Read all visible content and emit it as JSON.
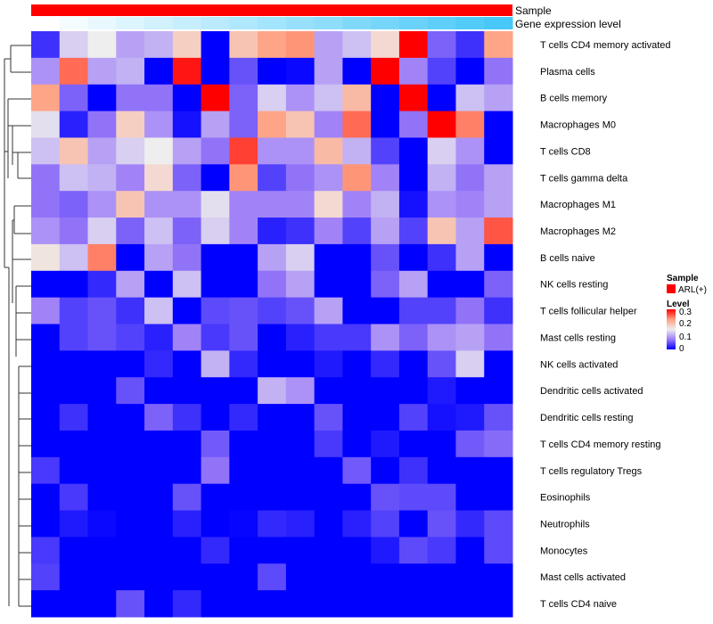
{
  "chart_data": {
    "type": "heatmap",
    "title": "",
    "color_scale": {
      "min": 0,
      "max": 0.3,
      "low": "#0000ff",
      "mid": "#eeeeee",
      "high": "#ff0000"
    },
    "annotations": {
      "sample_label": "Sample",
      "gene_label": "Gene expression level",
      "sample_color": "#ff0000",
      "gene_colors": [
        "#ffffff",
        "#48c8f8"
      ]
    },
    "legend": {
      "sample_title": "Sample",
      "sample_entry": "ARL(+)",
      "level_title": "Level",
      "ticks": [
        "0.3",
        "0.2",
        "0.1",
        "0"
      ],
      "placement": "right"
    },
    "rows": [
      "T cells CD4 memory activated",
      "Plasma cells",
      "B cells memory",
      "Macrophages M0",
      "T cells CD8",
      "T cells gamma delta",
      "Macrophages M1",
      "Macrophages M2",
      "B cells naive",
      "NK cells resting",
      "T cells follicular helper",
      "Mast cells resting",
      "NK cells activated",
      "Dendritic cells activated",
      "Dendritic cells resting",
      "T cells CD4 memory resting",
      "T cells regulatory  Tregs",
      "Eosinophils",
      "Neutrophils",
      "Monocytes",
      "Mast cells activated",
      "T cells CD4 naive"
    ],
    "values": [
      [
        0.03,
        0.13,
        0.15,
        0.1,
        0.11,
        0.18,
        0,
        0.19,
        0.22,
        0.23,
        0.1,
        0.12,
        0.17,
        0.3,
        0.06,
        0.03,
        0.22
      ],
      [
        0.09,
        0.25,
        0.1,
        0.11,
        0,
        0.29,
        0,
        0.05,
        0,
        0.005,
        0.1,
        0,
        0.3,
        0.08,
        0.04,
        0,
        0.07
      ],
      [
        0.22,
        0.06,
        0,
        0.07,
        0.07,
        0,
        0.3,
        0.06,
        0.13,
        0.09,
        0.12,
        0.2,
        0,
        0.3,
        0,
        0.12,
        0.1
      ],
      [
        0.14,
        0.02,
        0.07,
        0.18,
        0.09,
        0.01,
        0.1,
        0.06,
        0.22,
        0.19,
        0.08,
        0.25,
        0,
        0.07,
        0.3,
        0.24,
        0
      ],
      [
        0.12,
        0.19,
        0.1,
        0.13,
        0.15,
        0.1,
        0.07,
        0.27,
        0.09,
        0.09,
        0.2,
        0.11,
        0.04,
        0,
        0.13,
        0.09,
        0
      ],
      [
        0.07,
        0.12,
        0.11,
        0.08,
        0.17,
        0.06,
        0,
        0.23,
        0.04,
        0.07,
        0.09,
        0.23,
        0.08,
        0,
        0.11,
        0.07,
        0.1
      ],
      [
        0.07,
        0.06,
        0.09,
        0.19,
        0.09,
        0.09,
        0.14,
        0.08,
        0.08,
        0.08,
        0.17,
        0.08,
        0.11,
        0.01,
        0.09,
        0.08,
        0.1
      ],
      [
        0.09,
        0.07,
        0.13,
        0.06,
        0.12,
        0.06,
        0.13,
        0.08,
        0.02,
        0.03,
        0.08,
        0.04,
        0.1,
        0.04,
        0.19,
        0.1,
        0.26
      ],
      [
        0.16,
        0.12,
        0.24,
        0,
        0.1,
        0.07,
        0,
        0,
        0.1,
        0.13,
        0,
        0,
        0.05,
        0,
        0.03,
        0.1,
        0
      ],
      [
        0,
        0,
        0.025,
        0.1,
        0,
        0.12,
        0,
        0,
        0.07,
        0.1,
        0,
        0,
        0.06,
        0.1,
        0,
        0,
        0.06
      ],
      [
        0.08,
        0.04,
        0.05,
        0.03,
        0.12,
        0,
        0.045,
        0.05,
        0.04,
        0.05,
        0.1,
        0,
        0,
        0.04,
        0.04,
        0.07,
        0.03
      ],
      [
        0,
        0.04,
        0.05,
        0.04,
        0.02,
        0.08,
        0.035,
        0.05,
        0,
        0.02,
        0.035,
        0.035,
        0.09,
        0.06,
        0.09,
        0.1,
        0.07
      ],
      [
        0,
        0,
        0,
        0,
        0.025,
        0,
        0.11,
        0.025,
        0,
        0,
        0.015,
        0,
        0.025,
        0,
        0.05,
        0.13,
        0
      ],
      [
        0,
        0,
        0,
        0.05,
        0,
        0,
        0,
        0,
        0.11,
        0.09,
        0,
        0,
        0,
        0,
        0.015,
        0,
        0
      ],
      [
        0,
        0.03,
        0,
        0,
        0.06,
        0.03,
        0,
        0.025,
        0,
        0,
        0.05,
        0,
        0,
        0.04,
        0.01,
        0.015,
        0.05
      ],
      [
        0,
        0,
        0,
        0,
        0,
        0,
        0.055,
        0,
        0,
        0,
        0.035,
        0,
        0.015,
        0,
        0,
        0.055,
        0.065
      ],
      [
        0.035,
        0,
        0,
        0,
        0,
        0,
        0.07,
        0,
        0,
        0,
        0,
        0.055,
        0,
        0.03,
        0,
        0,
        0
      ],
      [
        0,
        0.035,
        0,
        0,
        0,
        0.05,
        0,
        0,
        0,
        0,
        0,
        0,
        0.05,
        0.045,
        0.045,
        0,
        0
      ],
      [
        0,
        0.015,
        0.005,
        0,
        0,
        0.02,
        0,
        0.003,
        0.025,
        0.02,
        0,
        0.02,
        0.04,
        0,
        0.05,
        0.025,
        0.045
      ],
      [
        0.035,
        0,
        0,
        0,
        0,
        0,
        0.025,
        0,
        0,
        0,
        0,
        0,
        0.015,
        0.045,
        0.035,
        0,
        0.045
      ],
      [
        0.04,
        0,
        0,
        0,
        0,
        0,
        0,
        0,
        0.045,
        0,
        0,
        0,
        0,
        0,
        0,
        0,
        0
      ],
      [
        0,
        0,
        0,
        0.05,
        0,
        0.025,
        0,
        0,
        0,
        0,
        0,
        0,
        0,
        0,
        0,
        0,
        0
      ]
    ]
  }
}
